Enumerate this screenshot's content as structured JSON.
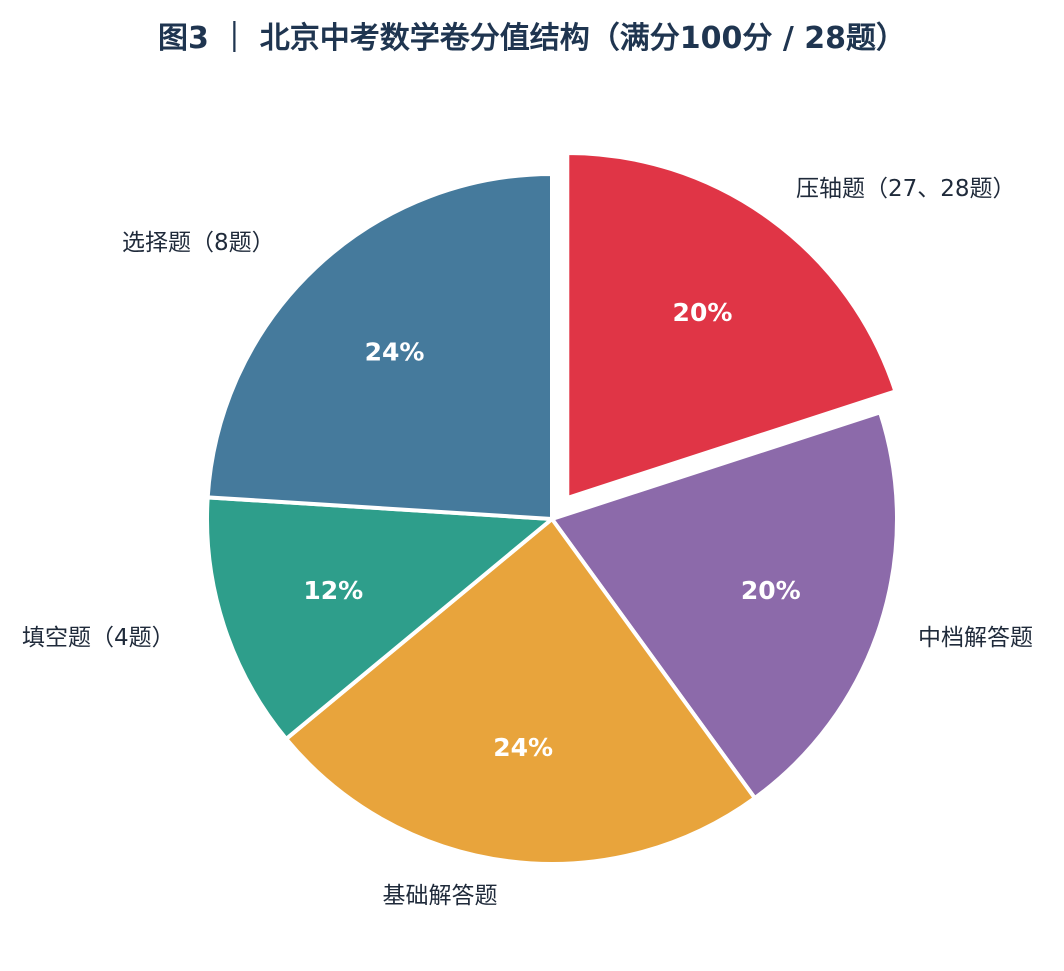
{
  "chart_data": {
    "type": "pie",
    "title": "图3 ｜ 北京中考数学卷分值结构（满分100分 / 28题）",
    "categories": [
      "压轴题（27、28题）",
      "中档解答题",
      "基础解答题",
      "填空题（4题）",
      "选择题（8题）"
    ],
    "values": [
      20,
      20,
      24,
      12,
      24
    ],
    "value_labels": [
      "20%",
      "20%",
      "24%",
      "12%",
      "24%"
    ],
    "colors": [
      "#e03546",
      "#8c6aaa",
      "#e8a43c",
      "#2e9e8b",
      "#457a9c"
    ],
    "exploded": [
      true,
      false,
      false,
      false,
      false
    ],
    "start": "12 o'clock, clockwise",
    "legend": "none, labels beside slices"
  }
}
